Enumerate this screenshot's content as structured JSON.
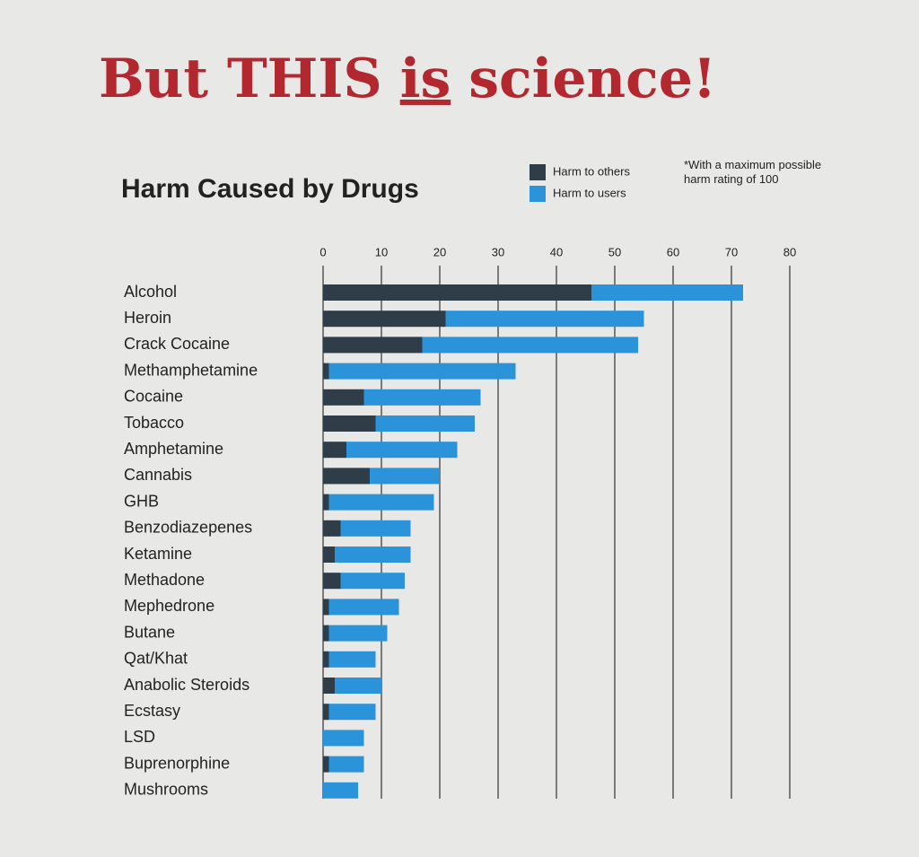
{
  "banner": {
    "parts": [
      "But THIS",
      "is",
      "science!"
    ]
  },
  "chart_data": {
    "type": "stacked-bar-horizontal",
    "title": "Harm Caused by Drugs",
    "note": "*With a maximum possible harm rating of 100",
    "categories": [
      "Alcohol",
      "Heroin",
      "Crack Cocaine",
      "Methamphetamine",
      "Cocaine",
      "Tobacco",
      "Amphetamine",
      "Cannabis",
      "GHB",
      "Benzodiazepenes",
      "Ketamine",
      "Methadone",
      "Mephedrone",
      "Butane",
      "Qat/Khat",
      "Anabolic Steroids",
      "Ecstasy",
      "LSD",
      "Buprenorphine",
      "Mushrooms"
    ],
    "series": [
      {
        "name": "Harm to others",
        "color": "#2f3d49",
        "values": [
          46,
          21,
          17,
          1,
          7,
          9,
          4,
          8,
          1,
          3,
          2,
          3,
          1,
          1,
          1,
          2,
          1,
          0,
          1,
          0
        ]
      },
      {
        "name": "Harm to users",
        "color": "#2a93da",
        "values": [
          26,
          34,
          37,
          32,
          20,
          17,
          19,
          12,
          18,
          12,
          13,
          11,
          12,
          10,
          8,
          8,
          8,
          7,
          6,
          6
        ]
      }
    ],
    "xlim": [
      0,
      80
    ],
    "xticks": [
      0,
      10,
      20,
      30,
      40,
      50,
      60,
      70,
      80
    ],
    "grid": true
  }
}
